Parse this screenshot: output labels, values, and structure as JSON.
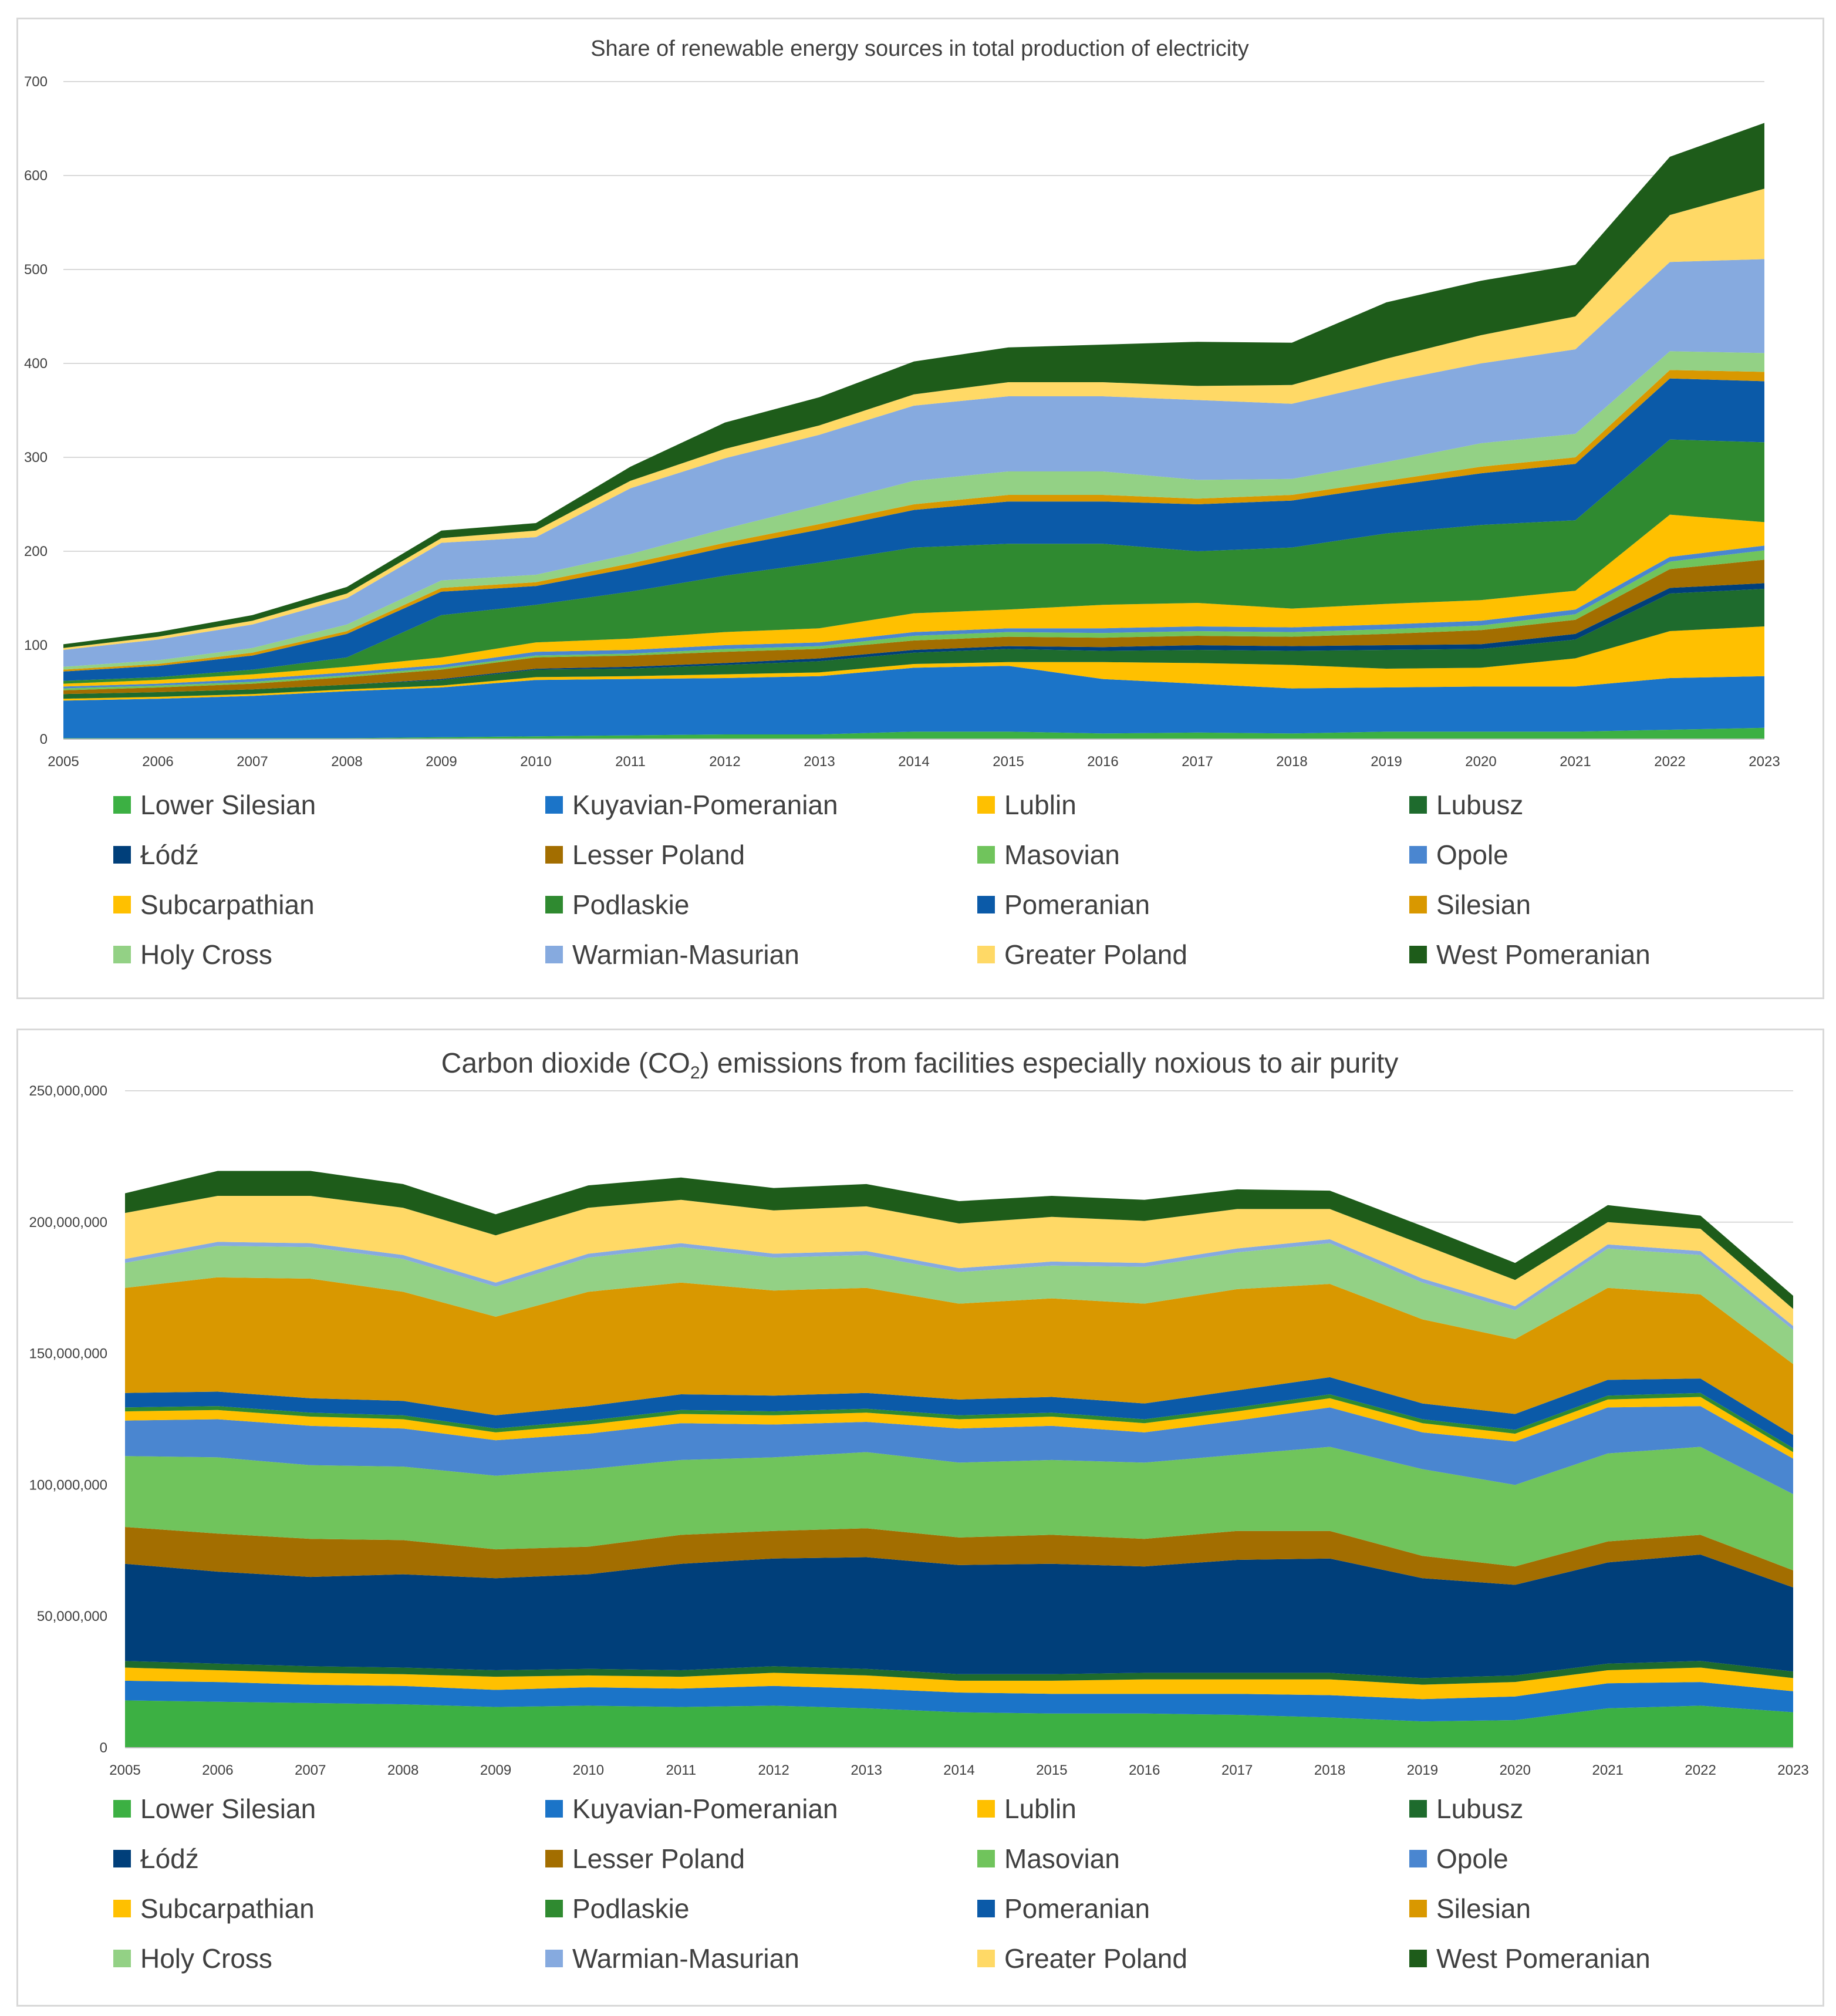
{
  "regions": [
    "Lower Silesian",
    "Kuyavian-Pomeranian",
    "Lublin",
    "Lubusz",
    "Łódź",
    "Lesser Poland",
    "Masovian",
    "Opole",
    "Subcarpathian",
    "Podlaskie",
    "Pomeranian",
    "Silesian",
    "Holy Cross",
    "Warmian-Masurian",
    "Greater Poland",
    "West Pomeranian"
  ],
  "colors": [
    "#3cb043",
    "#1b74c8",
    "#ffc000",
    "#1e6b2d",
    "#003f7a",
    "#a36e00",
    "#70c45c",
    "#4a86d0",
    "#ffc000",
    "#2f8a30",
    "#0b5aa8",
    "#d99800",
    "#93d185",
    "#86aadf",
    "#ffd966",
    "#1e5c1a"
  ],
  "chart_data": [
    {
      "type": "area",
      "stacked": true,
      "title": "Share of renewable energy sources in total production of electricity",
      "x": [
        "2005",
        "2006",
        "2007",
        "2008",
        "2009",
        "2010",
        "2011",
        "2012",
        "2013",
        "2014",
        "2015",
        "2016",
        "2017",
        "2018",
        "2019",
        "2020",
        "2021",
        "2022",
        "2023"
      ],
      "ylim": [
        0,
        700
      ],
      "yticks": [
        0,
        100,
        200,
        300,
        400,
        500,
        600,
        700
      ],
      "ytick_labels": [
        "0",
        "100",
        "200",
        "300",
        "400",
        "500",
        "600",
        "700"
      ],
      "legend_position": "bottom",
      "series": [
        {
          "name": "Lower Silesian",
          "values": [
            1,
            1,
            1,
            1,
            2,
            3,
            4,
            5,
            5,
            8,
            8,
            6,
            7,
            6,
            8,
            8,
            8,
            10,
            12
          ]
        },
        {
          "name": "Kuyavian-Pomeranian",
          "values": [
            40,
            42,
            45,
            50,
            53,
            60,
            60,
            60,
            62,
            68,
            70,
            58,
            52,
            48,
            47,
            48,
            48,
            55,
            55
          ]
        },
        {
          "name": "Lublin",
          "values": [
            2,
            2,
            2,
            2,
            2,
            3,
            3,
            4,
            4,
            4,
            4,
            18,
            22,
            25,
            20,
            20,
            30,
            50,
            53
          ]
        },
        {
          "name": "Lubusz",
          "values": [
            5,
            5,
            5,
            5,
            6,
            8,
            8,
            10,
            12,
            12,
            14,
            12,
            14,
            15,
            20,
            20,
            20,
            40,
            40
          ]
        },
        {
          "name": "Łódź",
          "values": [
            0,
            0,
            0,
            0,
            1,
            1,
            2,
            2,
            3,
            3,
            3,
            4,
            5,
            5,
            5,
            5,
            6,
            6,
            6
          ]
        },
        {
          "name": "Lesser Poland",
          "values": [
            4,
            5,
            6,
            8,
            10,
            12,
            12,
            12,
            10,
            10,
            10,
            10,
            10,
            10,
            12,
            15,
            15,
            20,
            25
          ]
        },
        {
          "name": "Masovian",
          "values": [
            2,
            2,
            2,
            2,
            2,
            2,
            2,
            3,
            3,
            5,
            5,
            5,
            5,
            5,
            5,
            5,
            6,
            8,
            10
          ]
        },
        {
          "name": "Opole",
          "values": [
            2,
            2,
            3,
            3,
            3,
            4,
            4,
            4,
            4,
            4,
            4,
            5,
            5,
            5,
            5,
            5,
            5,
            5,
            5
          ]
        },
        {
          "name": "Subcarpathian",
          "values": [
            3,
            4,
            5,
            6,
            8,
            10,
            12,
            14,
            15,
            20,
            20,
            25,
            25,
            20,
            22,
            22,
            20,
            45,
            25
          ]
        },
        {
          "name": "Podlaskie",
          "values": [
            3,
            3,
            5,
            10,
            45,
            40,
            50,
            60,
            70,
            70,
            70,
            65,
            55,
            65,
            75,
            80,
            75,
            80,
            85
          ]
        },
        {
          "name": "Pomeranian",
          "values": [
            10,
            12,
            15,
            25,
            25,
            20,
            25,
            30,
            35,
            40,
            45,
            45,
            50,
            50,
            50,
            55,
            60,
            65,
            65
          ]
        },
        {
          "name": "Silesian",
          "values": [
            2,
            2,
            3,
            3,
            4,
            4,
            5,
            5,
            6,
            6,
            7,
            7,
            6,
            6,
            6,
            7,
            7,
            9,
            10
          ]
        },
        {
          "name": "Holy Cross",
          "values": [
            3,
            4,
            5,
            7,
            8,
            8,
            10,
            15,
            20,
            25,
            25,
            25,
            20,
            17,
            20,
            25,
            25,
            20,
            20
          ]
        },
        {
          "name": "Warmian-Masurian",
          "values": [
            18,
            22,
            25,
            28,
            40,
            40,
            70,
            75,
            75,
            80,
            80,
            80,
            85,
            80,
            85,
            85,
            90,
            95,
            100
          ]
        },
        {
          "name": "Greater Poland",
          "values": [
            2,
            3,
            4,
            5,
            5,
            7,
            8,
            10,
            10,
            12,
            15,
            15,
            15,
            20,
            25,
            30,
            35,
            50,
            75
          ]
        },
        {
          "name": "West Pomeranian",
          "values": [
            4,
            5,
            6,
            7,
            8,
            8,
            15,
            28,
            30,
            35,
            37,
            40,
            47,
            45,
            60,
            58,
            55,
            62,
            70
          ]
        }
      ]
    },
    {
      "type": "area",
      "stacked": true,
      "title_parts": [
        "Carbon dioxide (CO",
        "2",
        ") emissions from facilities especially noxious to air purity"
      ],
      "x": [
        "2005",
        "2006",
        "2007",
        "2008",
        "2009",
        "2010",
        "2011",
        "2012",
        "2013",
        "2014",
        "2015",
        "2016",
        "2017",
        "2018",
        "2019",
        "2020",
        "2021",
        "2022",
        "2023"
      ],
      "ylim": [
        0,
        250000000
      ],
      "yticks": [
        0,
        50000000,
        100000000,
        150000000,
        200000000,
        250000000
      ],
      "ytick_labels": [
        "0",
        "50,000,000",
        "100,000,000",
        "150,000,000",
        "200,000,000",
        "250,000,000"
      ],
      "legend_position": "bottom",
      "series": [
        {
          "name": "Lower Silesian",
          "values": [
            18000000,
            17500000,
            17000000,
            16500000,
            15500000,
            16000000,
            15500000,
            16000000,
            15000000,
            13500000,
            13000000,
            13000000,
            12500000,
            11500000,
            10000000,
            10500000,
            15000000,
            16000000,
            13500000
          ]
        },
        {
          "name": "Kuyavian-Pomeranian",
          "values": [
            7500000,
            7500000,
            7000000,
            7000000,
            6500000,
            7000000,
            7000000,
            7500000,
            7500000,
            7500000,
            7500000,
            7500000,
            8000000,
            8500000,
            8500000,
            9000000,
            9500000,
            9000000,
            8000000
          ]
        },
        {
          "name": "Lublin",
          "values": [
            5000000,
            4500000,
            4500000,
            4500000,
            5000000,
            4500000,
            4500000,
            5000000,
            5000000,
            4500000,
            5000000,
            5500000,
            5500000,
            6000000,
            5500000,
            5500000,
            5000000,
            5500000,
            5000000
          ]
        },
        {
          "name": "Lubusz",
          "values": [
            2500000,
            2500000,
            2500000,
            2500000,
            2500000,
            2500000,
            2500000,
            2500000,
            2500000,
            2500000,
            2500000,
            2500000,
            2500000,
            2500000,
            2500000,
            2500000,
            2500000,
            2500000,
            2500000
          ]
        },
        {
          "name": "Łódź",
          "values": [
            37000000,
            35000000,
            34000000,
            35500000,
            35000000,
            36000000,
            40500000,
            41000000,
            42500000,
            41500000,
            42000000,
            40500000,
            43000000,
            43500000,
            38000000,
            34500000,
            38500000,
            40500000,
            32000000
          ]
        },
        {
          "name": "Lesser Poland",
          "values": [
            14000000,
            14500000,
            14500000,
            13000000,
            11000000,
            10500000,
            11000000,
            10500000,
            11000000,
            10500000,
            11000000,
            10500000,
            11000000,
            10500000,
            8500000,
            7000000,
            8000000,
            7500000,
            6500000
          ]
        },
        {
          "name": "Masovian",
          "values": [
            27000000,
            29000000,
            28000000,
            28000000,
            28000000,
            29500000,
            28500000,
            28000000,
            29000000,
            28500000,
            28500000,
            29000000,
            29000000,
            32000000,
            33000000,
            31000000,
            33500000,
            33500000,
            29000000
          ]
        },
        {
          "name": "Opole",
          "values": [
            13500000,
            14500000,
            15000000,
            14500000,
            13500000,
            13500000,
            14000000,
            12500000,
            11500000,
            13000000,
            13000000,
            11500000,
            13000000,
            15000000,
            14000000,
            16500000,
            17500000,
            15500000,
            13500000
          ]
        },
        {
          "name": "Subcarpathian",
          "values": [
            3500000,
            3500000,
            3500000,
            3500000,
            3000000,
            3500000,
            3500000,
            3500000,
            3500000,
            3500000,
            3500000,
            3500000,
            3500000,
            3500000,
            3500000,
            3000000,
            3000000,
            3500000,
            2500000
          ]
        },
        {
          "name": "Podlaskie",
          "values": [
            1500000,
            1500000,
            1500000,
            1500000,
            1500000,
            1500000,
            1500000,
            1500000,
            1500000,
            1500000,
            1500000,
            1500000,
            1500000,
            1500000,
            1500000,
            1500000,
            1500000,
            1500000,
            1500000
          ]
        },
        {
          "name": "Pomeranian",
          "values": [
            5500000,
            5500000,
            5500000,
            5500000,
            5000000,
            5500000,
            6000000,
            6000000,
            6000000,
            6000000,
            6000000,
            6000000,
            6500000,
            6500000,
            6000000,
            6000000,
            6000000,
            5500000,
            5000000
          ]
        },
        {
          "name": "Silesian",
          "values": [
            40000000,
            43500000,
            45500000,
            41500000,
            37500000,
            43500000,
            42500000,
            40000000,
            40000000,
            36500000,
            37500000,
            38000000,
            38500000,
            35500000,
            32000000,
            28500000,
            35000000,
            32000000,
            27000000
          ]
        },
        {
          "name": "Holy Cross",
          "values": [
            9500000,
            12000000,
            12000000,
            12500000,
            11500000,
            13000000,
            13500000,
            12500000,
            12500000,
            12000000,
            12500000,
            14000000,
            14000000,
            15500000,
            14000000,
            11000000,
            15000000,
            15000000,
            13000000
          ]
        },
        {
          "name": "Warmian-Masurian",
          "values": [
            1500000,
            1500000,
            1500000,
            1500000,
            1500000,
            1500000,
            1500000,
            1500000,
            1500000,
            1500000,
            1500000,
            1500000,
            1500000,
            1500000,
            1500000,
            1500000,
            1500000,
            1500000,
            1500000
          ]
        },
        {
          "name": "Greater Poland",
          "values": [
            17500000,
            17500000,
            18000000,
            18000000,
            18000000,
            17500000,
            16500000,
            16500000,
            17000000,
            17000000,
            17000000,
            16000000,
            15000000,
            11500000,
            13000000,
            10000000,
            8500000,
            8500000,
            6500000
          ]
        },
        {
          "name": "West Pomeranian",
          "values": [
            7500000,
            9500000,
            9500000,
            9000000,
            8000000,
            8500000,
            8500000,
            8500000,
            8500000,
            8500000,
            8000000,
            8000000,
            7500000,
            7000000,
            7000000,
            6500000,
            6500000,
            5000000,
            5000000
          ]
        }
      ]
    }
  ]
}
